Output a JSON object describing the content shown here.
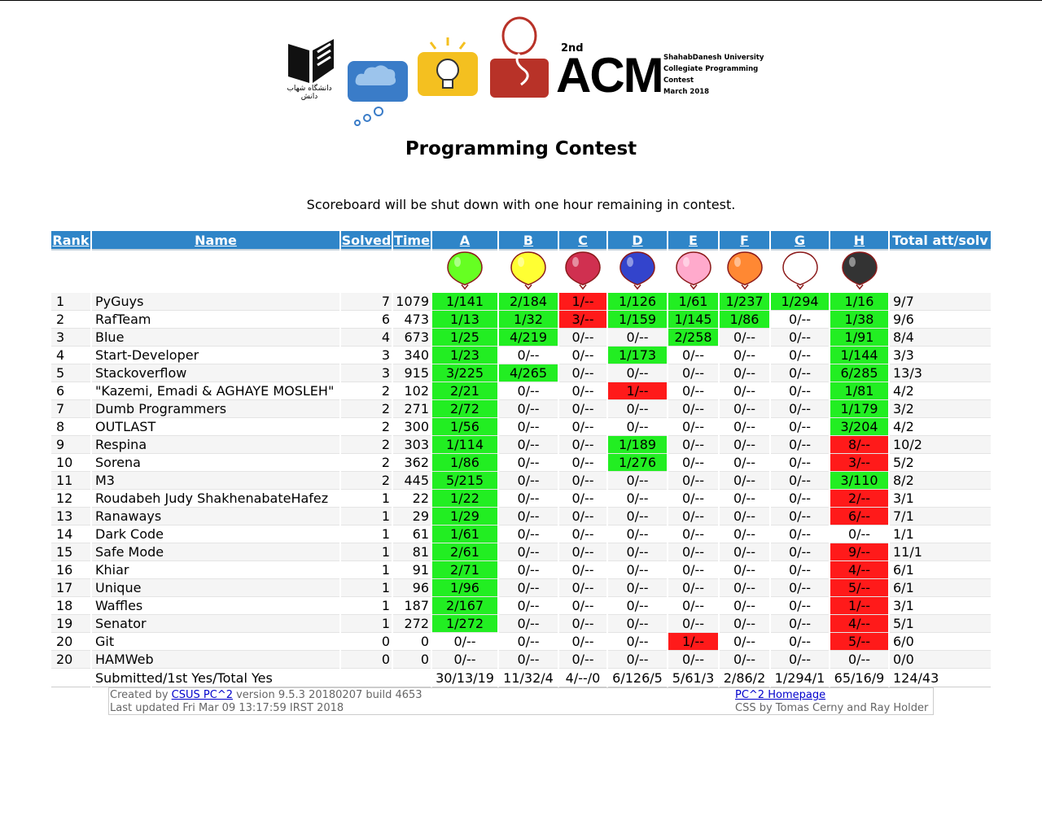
{
  "header": {
    "univ_text": "دانشگاه شهاب دانش",
    "acm_edition": "2nd",
    "acm_word": "ACM",
    "acm_info": [
      "ShahabDanesh University",
      "Collegiate Programming",
      "Contest",
      "March 2018"
    ]
  },
  "title": "Programming Contest",
  "subtitle": "Scoreboard will be shut down with one hour remaining in contest.",
  "columns": {
    "rank": "Rank",
    "name": "Name",
    "solved": "Solved",
    "time": "Time",
    "problems": [
      "A",
      "B",
      "C",
      "D",
      "E",
      "F",
      "G",
      "H"
    ],
    "total": "Total att/solv"
  },
  "balloon_colors": [
    "#66ff22",
    "#ffff33",
    "#d03050",
    "#3344cc",
    "#ffaacc",
    "#ff8833",
    "#ffffff",
    "#333333"
  ],
  "status_colors": {
    "solved": "#22ee22",
    "pending": "#ff1a1a"
  },
  "rows": [
    {
      "rank": "1",
      "name": "PyGuys",
      "solved": "7",
      "time": "1079",
      "cells": [
        [
          "1/141",
          "g"
        ],
        [
          "2/184",
          "g"
        ],
        [
          "1/--",
          "r"
        ],
        [
          "1/126",
          "g"
        ],
        [
          "1/61",
          "g"
        ],
        [
          "1/237",
          "g"
        ],
        [
          "1/294",
          "g"
        ],
        [
          "1/16",
          "g"
        ]
      ],
      "total": "9/7"
    },
    {
      "rank": "2",
      "name": "RafTeam",
      "solved": "6",
      "time": "473",
      "cells": [
        [
          "1/13",
          "g"
        ],
        [
          "1/32",
          "g"
        ],
        [
          "3/--",
          "r"
        ],
        [
          "1/159",
          "g"
        ],
        [
          "1/145",
          "g"
        ],
        [
          "1/86",
          "g"
        ],
        [
          "0/--",
          ""
        ],
        [
          "1/38",
          "g"
        ]
      ],
      "total": "9/6"
    },
    {
      "rank": "3",
      "name": "Blue",
      "solved": "4",
      "time": "673",
      "cells": [
        [
          "1/25",
          "g"
        ],
        [
          "4/219",
          "g"
        ],
        [
          "0/--",
          ""
        ],
        [
          "0/--",
          ""
        ],
        [
          "2/258",
          "g"
        ],
        [
          "0/--",
          ""
        ],
        [
          "0/--",
          ""
        ],
        [
          "1/91",
          "g"
        ]
      ],
      "total": "8/4"
    },
    {
      "rank": "4",
      "name": "Start-Developer",
      "solved": "3",
      "time": "340",
      "cells": [
        [
          "1/23",
          "g"
        ],
        [
          "0/--",
          ""
        ],
        [
          "0/--",
          ""
        ],
        [
          "1/173",
          "g"
        ],
        [
          "0/--",
          ""
        ],
        [
          "0/--",
          ""
        ],
        [
          "0/--",
          ""
        ],
        [
          "1/144",
          "g"
        ]
      ],
      "total": "3/3"
    },
    {
      "rank": "5",
      "name": "Stackoverflow",
      "solved": "3",
      "time": "915",
      "cells": [
        [
          "3/225",
          "g"
        ],
        [
          "4/265",
          "g"
        ],
        [
          "0/--",
          ""
        ],
        [
          "0/--",
          ""
        ],
        [
          "0/--",
          ""
        ],
        [
          "0/--",
          ""
        ],
        [
          "0/--",
          ""
        ],
        [
          "6/285",
          "g"
        ]
      ],
      "total": "13/3"
    },
    {
      "rank": "6",
      "name": "\"Kazemi, Emadi & AGHAYE MOSLEH\"",
      "solved": "2",
      "time": "102",
      "cells": [
        [
          "2/21",
          "g"
        ],
        [
          "0/--",
          ""
        ],
        [
          "0/--",
          ""
        ],
        [
          "1/--",
          "r"
        ],
        [
          "0/--",
          ""
        ],
        [
          "0/--",
          ""
        ],
        [
          "0/--",
          ""
        ],
        [
          "1/81",
          "g"
        ]
      ],
      "total": "4/2"
    },
    {
      "rank": "7",
      "name": "Dumb Programmers",
      "solved": "2",
      "time": "271",
      "cells": [
        [
          "2/72",
          "g"
        ],
        [
          "0/--",
          ""
        ],
        [
          "0/--",
          ""
        ],
        [
          "0/--",
          ""
        ],
        [
          "0/--",
          ""
        ],
        [
          "0/--",
          ""
        ],
        [
          "0/--",
          ""
        ],
        [
          "1/179",
          "g"
        ]
      ],
      "total": "3/2"
    },
    {
      "rank": "8",
      "name": "OUTLAST",
      "solved": "2",
      "time": "300",
      "cells": [
        [
          "1/56",
          "g"
        ],
        [
          "0/--",
          ""
        ],
        [
          "0/--",
          ""
        ],
        [
          "0/--",
          ""
        ],
        [
          "0/--",
          ""
        ],
        [
          "0/--",
          ""
        ],
        [
          "0/--",
          ""
        ],
        [
          "3/204",
          "g"
        ]
      ],
      "total": "4/2"
    },
    {
      "rank": "9",
      "name": "Respina",
      "solved": "2",
      "time": "303",
      "cells": [
        [
          "1/114",
          "g"
        ],
        [
          "0/--",
          ""
        ],
        [
          "0/--",
          ""
        ],
        [
          "1/189",
          "g"
        ],
        [
          "0/--",
          ""
        ],
        [
          "0/--",
          ""
        ],
        [
          "0/--",
          ""
        ],
        [
          "8/--",
          "r"
        ]
      ],
      "total": "10/2"
    },
    {
      "rank": "10",
      "name": "Sorena",
      "solved": "2",
      "time": "362",
      "cells": [
        [
          "1/86",
          "g"
        ],
        [
          "0/--",
          ""
        ],
        [
          "0/--",
          ""
        ],
        [
          "1/276",
          "g"
        ],
        [
          "0/--",
          ""
        ],
        [
          "0/--",
          ""
        ],
        [
          "0/--",
          ""
        ],
        [
          "3/--",
          "r"
        ]
      ],
      "total": "5/2"
    },
    {
      "rank": "11",
      "name": "M3",
      "solved": "2",
      "time": "445",
      "cells": [
        [
          "5/215",
          "g"
        ],
        [
          "0/--",
          ""
        ],
        [
          "0/--",
          ""
        ],
        [
          "0/--",
          ""
        ],
        [
          "0/--",
          ""
        ],
        [
          "0/--",
          ""
        ],
        [
          "0/--",
          ""
        ],
        [
          "3/110",
          "g"
        ]
      ],
      "total": "8/2"
    },
    {
      "rank": "12",
      "name": "Roudabeh Judy ShakhenabateHafez",
      "solved": "1",
      "time": "22",
      "cells": [
        [
          "1/22",
          "g"
        ],
        [
          "0/--",
          ""
        ],
        [
          "0/--",
          ""
        ],
        [
          "0/--",
          ""
        ],
        [
          "0/--",
          ""
        ],
        [
          "0/--",
          ""
        ],
        [
          "0/--",
          ""
        ],
        [
          "2/--",
          "r"
        ]
      ],
      "total": "3/1"
    },
    {
      "rank": "13",
      "name": "Ranaways",
      "solved": "1",
      "time": "29",
      "cells": [
        [
          "1/29",
          "g"
        ],
        [
          "0/--",
          ""
        ],
        [
          "0/--",
          ""
        ],
        [
          "0/--",
          ""
        ],
        [
          "0/--",
          ""
        ],
        [
          "0/--",
          ""
        ],
        [
          "0/--",
          ""
        ],
        [
          "6/--",
          "r"
        ]
      ],
      "total": "7/1"
    },
    {
      "rank": "14",
      "name": "Dark Code",
      "solved": "1",
      "time": "61",
      "cells": [
        [
          "1/61",
          "g"
        ],
        [
          "0/--",
          ""
        ],
        [
          "0/--",
          ""
        ],
        [
          "0/--",
          ""
        ],
        [
          "0/--",
          ""
        ],
        [
          "0/--",
          ""
        ],
        [
          "0/--",
          ""
        ],
        [
          "0/--",
          ""
        ]
      ],
      "total": "1/1"
    },
    {
      "rank": "15",
      "name": "Safe Mode",
      "solved": "1",
      "time": "81",
      "cells": [
        [
          "2/61",
          "g"
        ],
        [
          "0/--",
          ""
        ],
        [
          "0/--",
          ""
        ],
        [
          "0/--",
          ""
        ],
        [
          "0/--",
          ""
        ],
        [
          "0/--",
          ""
        ],
        [
          "0/--",
          ""
        ],
        [
          "9/--",
          "r"
        ]
      ],
      "total": "11/1"
    },
    {
      "rank": "16",
      "name": "Khiar",
      "solved": "1",
      "time": "91",
      "cells": [
        [
          "2/71",
          "g"
        ],
        [
          "0/--",
          ""
        ],
        [
          "0/--",
          ""
        ],
        [
          "0/--",
          ""
        ],
        [
          "0/--",
          ""
        ],
        [
          "0/--",
          ""
        ],
        [
          "0/--",
          ""
        ],
        [
          "4/--",
          "r"
        ]
      ],
      "total": "6/1"
    },
    {
      "rank": "17",
      "name": "Unique",
      "solved": "1",
      "time": "96",
      "cells": [
        [
          "1/96",
          "g"
        ],
        [
          "0/--",
          ""
        ],
        [
          "0/--",
          ""
        ],
        [
          "0/--",
          ""
        ],
        [
          "0/--",
          ""
        ],
        [
          "0/--",
          ""
        ],
        [
          "0/--",
          ""
        ],
        [
          "5/--",
          "r"
        ]
      ],
      "total": "6/1"
    },
    {
      "rank": "18",
      "name": "Waffles",
      "solved": "1",
      "time": "187",
      "cells": [
        [
          "2/167",
          "g"
        ],
        [
          "0/--",
          ""
        ],
        [
          "0/--",
          ""
        ],
        [
          "0/--",
          ""
        ],
        [
          "0/--",
          ""
        ],
        [
          "0/--",
          ""
        ],
        [
          "0/--",
          ""
        ],
        [
          "1/--",
          "r"
        ]
      ],
      "total": "3/1"
    },
    {
      "rank": "19",
      "name": "Senator",
      "solved": "1",
      "time": "272",
      "cells": [
        [
          "1/272",
          "g"
        ],
        [
          "0/--",
          ""
        ],
        [
          "0/--",
          ""
        ],
        [
          "0/--",
          ""
        ],
        [
          "0/--",
          ""
        ],
        [
          "0/--",
          ""
        ],
        [
          "0/--",
          ""
        ],
        [
          "4/--",
          "r"
        ]
      ],
      "total": "5/1"
    },
    {
      "rank": "20",
      "name": "Git",
      "solved": "0",
      "time": "0",
      "cells": [
        [
          "0/--",
          ""
        ],
        [
          "0/--",
          ""
        ],
        [
          "0/--",
          ""
        ],
        [
          "0/--",
          ""
        ],
        [
          "1/--",
          "r"
        ],
        [
          "0/--",
          ""
        ],
        [
          "0/--",
          ""
        ],
        [
          "5/--",
          "r"
        ]
      ],
      "total": "6/0"
    },
    {
      "rank": "20",
      "name": "HAMWeb",
      "solved": "0",
      "time": "0",
      "cells": [
        [
          "0/--",
          ""
        ],
        [
          "0/--",
          ""
        ],
        [
          "0/--",
          ""
        ],
        [
          "0/--",
          ""
        ],
        [
          "0/--",
          ""
        ],
        [
          "0/--",
          ""
        ],
        [
          "0/--",
          ""
        ],
        [
          "0/--",
          ""
        ]
      ],
      "total": "0/0"
    }
  ],
  "totals": {
    "label": "Submitted/1st Yes/Total Yes",
    "cells": [
      "30/13/19",
      "11/32/4",
      "4/--/0",
      "6/126/5",
      "5/61/3",
      "2/86/2",
      "1/294/1",
      "65/16/9"
    ],
    "total": "124/43"
  },
  "footer": {
    "created_prefix": "Created by ",
    "created_link": "CSUS PC^2",
    "created_suffix": " version 9.5.3 20180207 build 4653",
    "updated": "Last updated Fri Mar 09 13:17:59 IRST 2018",
    "homepage_link": "PC^2 Homepage",
    "css_credit": "CSS by Tomas Cerny and Ray Holder"
  }
}
